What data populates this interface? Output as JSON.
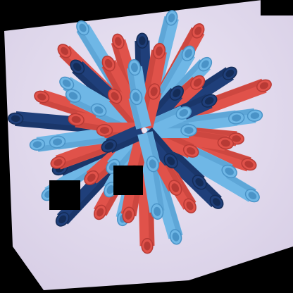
{
  "scene": {
    "subject": "bundle-of-drinking-straws",
    "colors": {
      "background_outside": "#000000",
      "paper": "#e4dcef",
      "paper_shadow": "#cfc5df",
      "red": "#e0524a",
      "red_dark": "#b83a35",
      "light_blue": "#6fb7e6",
      "light_blue_dark": "#4a93c7",
      "navy": "#1f3f7a",
      "occluder": "#000000"
    },
    "straw_color_sequence": [
      "light_blue",
      "red",
      "navy",
      "light_blue",
      "red",
      "light_blue",
      "navy",
      "red",
      "light_blue",
      "red"
    ]
  }
}
